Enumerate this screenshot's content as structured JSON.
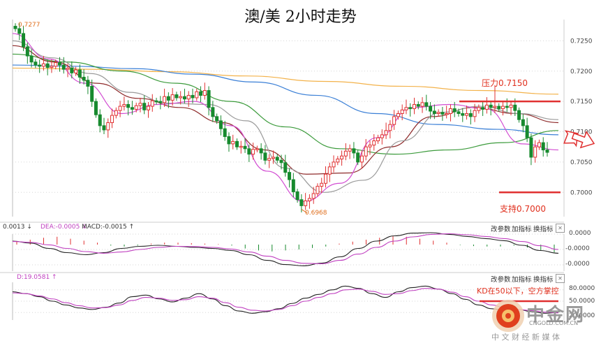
{
  "title": "澳/美 2小时走势",
  "colors": {
    "up": "#e03030",
    "down": "#178a2e",
    "resistance": "#e03030",
    "support": "#e03030",
    "ma_orange": "#f3b24a",
    "ma_blue": "#3a7fd6",
    "ma_green": "#3c9b3c",
    "ma_darkred": "#8e2a2a",
    "ma_magenta": "#d24dd2",
    "ma_black": "#222222",
    "ma_gray": "#9a9a9a",
    "grid": "#d6d6d6",
    "axis_text": "#444444",
    "annotation_red": "#e0301e",
    "annotation_orange": "#e07020"
  },
  "annotations": {
    "resistance": "压力0.7150",
    "support": "支持0.7000",
    "high_label": "0.7277",
    "low_label": "0.6968",
    "kd_note": "KD在50以下，空方掌控"
  },
  "macd_panel": {
    "label_dif": "0.0013 ↓",
    "label_dea": "DEA:-0.0005 ↓",
    "label_macd": "MACD:-0.0015 ↑",
    "buttons": [
      "改参数",
      "加指标",
      "换指标"
    ],
    "close_icon": "✕",
    "ticks": [
      "0.0000",
      "-0.0000",
      "-0.0000"
    ]
  },
  "kd_panel": {
    "label_d": "D:19.0581 ↑",
    "buttons": [
      "改参数",
      "加指标",
      "换指标"
    ],
    "close_icon": "✕",
    "ticks": [
      "80.0000",
      "50.0000",
      "20.0000"
    ]
  },
  "logo": {
    "name": "中金网",
    "domain": "CNGOLD.COM.CN",
    "slogan": "中 文 财 经 新 媒 体"
  },
  "chart_data": [
    {
      "type": "candlestick",
      "title": "澳/美 2小时走势",
      "y_ticks": [
        "0.7250",
        "0.7200",
        "0.7150",
        "0.7100",
        "0.7050",
        "0.7000"
      ],
      "ylim": [
        0.696,
        0.7285
      ],
      "grid": true,
      "resistance": 0.715,
      "support": 0.7,
      "high": 0.7277,
      "low": 0.6968,
      "close_path": [
        0.727,
        0.7262,
        0.724,
        0.7225,
        0.7215,
        0.721,
        0.7208,
        0.7212,
        0.7206,
        0.7208,
        0.7214,
        0.721,
        0.7203,
        0.7205,
        0.7197,
        0.7202,
        0.719,
        0.7185,
        0.7175,
        0.715,
        0.7128,
        0.711,
        0.7103,
        0.7115,
        0.7127,
        0.7135,
        0.7142,
        0.7145,
        0.714,
        0.7137,
        0.7143,
        0.7147,
        0.7136,
        0.7142,
        0.7151,
        0.715,
        0.7148,
        0.7158,
        0.7152,
        0.7161,
        0.7156,
        0.7158,
        0.7154,
        0.716,
        0.7156,
        0.7166,
        0.716,
        0.7168,
        0.714,
        0.7125,
        0.7118,
        0.7105,
        0.7092,
        0.708,
        0.7084,
        0.7075,
        0.7076,
        0.7072,
        0.7063,
        0.7071,
        0.7072,
        0.7065,
        0.7053,
        0.7056,
        0.7058,
        0.7053,
        0.7049,
        0.7033,
        0.7021,
        0.7001,
        0.6988,
        0.6978,
        0.6986,
        0.699,
        0.6998,
        0.701,
        0.7015,
        0.703,
        0.7042,
        0.705,
        0.7055,
        0.706,
        0.7068,
        0.7072,
        0.7065,
        0.705,
        0.706,
        0.7075,
        0.7078,
        0.7085,
        0.709,
        0.7095,
        0.7102,
        0.7112,
        0.7125,
        0.713,
        0.7136,
        0.714,
        0.7138,
        0.7145,
        0.7142,
        0.7148,
        0.7142,
        0.7134,
        0.713,
        0.7132,
        0.7129,
        0.713,
        0.7138,
        0.7133,
        0.713,
        0.7127,
        0.713,
        0.7125,
        0.7135,
        0.714,
        0.7137,
        0.7144,
        0.714,
        0.7142,
        0.7138,
        0.7142,
        0.714,
        0.7144,
        0.7135,
        0.712,
        0.711,
        0.709,
        0.7058,
        0.7075,
        0.7082,
        0.707,
        0.7066
      ],
      "moving_averages": [
        {
          "color": "#f3b24a",
          "y": [
            0.7205,
            0.7203,
            0.7199,
            0.7192,
            0.7183,
            0.7175,
            0.7168,
            0.7162
          ]
        },
        {
          "color": "#3a7fd6",
          "y": [
            0.721,
            0.7208,
            0.7204,
            0.7195,
            0.7182,
            0.716,
            0.713,
            0.7112,
            0.7104,
            0.7095
          ]
        },
        {
          "color": "#3c9b3c",
          "y": [
            0.7228,
            0.7215,
            0.72,
            0.718,
            0.715,
            0.7108,
            0.7072,
            0.7063,
            0.707,
            0.7082,
            0.7102
          ]
        },
        {
          "color": "#8e2a2a",
          "y": [
            0.7242,
            0.7215,
            0.718,
            0.7155,
            0.714,
            0.7115,
            0.707,
            0.703,
            0.7032,
            0.7075,
            0.7125,
            0.714,
            0.713,
            0.7115
          ]
        },
        {
          "color": "#9a9a9a",
          "y": [
            0.725,
            0.7222,
            0.7196,
            0.7165,
            0.7147,
            0.7145,
            0.7118,
            0.704,
            0.7,
            0.702,
            0.7085,
            0.7132,
            0.7142,
            0.713,
            0.712
          ]
        },
        {
          "color": "#d24dd2",
          "y": [
            0.7262,
            0.722,
            0.718,
            0.713,
            0.7145,
            0.715,
            0.711,
            0.7035,
            0.6985,
            0.7015,
            0.709,
            0.714,
            0.7145,
            0.7138,
            0.708,
            0.707
          ]
        }
      ]
    },
    {
      "type": "bar+line",
      "name": "MACD",
      "y_ticks": [
        "0.0000",
        "-0.0000",
        "-0.0000"
      ],
      "macd_bars": [
        0.3,
        0.5,
        0.7,
        0.8,
        0.6,
        0.4,
        0.2,
        -0.1,
        -0.2,
        -0.1,
        0.1,
        0.2,
        0.2,
        0.15,
        0.1,
        0.05,
        -0.1,
        -0.4,
        -0.6,
        -0.7,
        -0.6,
        -0.5,
        -0.35,
        -0.2,
        0.1,
        0.3,
        0.5,
        0.7,
        0.85,
        0.8,
        0.6,
        0.4,
        0.2,
        -0.05,
        -0.15,
        -0.2,
        -0.2,
        -0.1,
        -0.3,
        -0.6,
        -0.8
      ],
      "dif": [
        0.3,
        0.2,
        -0.05,
        -0.25,
        -0.35,
        -0.25,
        -0.05,
        0.05,
        0.1,
        0.05,
        0.0,
        -0.05,
        -0.15,
        -0.35,
        -0.62,
        -0.82,
        -0.88,
        -0.75,
        -0.45,
        -0.05,
        0.3,
        0.55,
        0.68,
        0.7,
        0.62,
        0.52,
        0.42,
        0.32,
        0.1,
        -0.15,
        -0.28
      ],
      "dea": [
        0.28,
        0.24,
        0.12,
        -0.05,
        -0.2,
        -0.28,
        -0.22,
        -0.1,
        0.0,
        0.05,
        0.04,
        0.0,
        -0.08,
        -0.22,
        -0.42,
        -0.62,
        -0.76,
        -0.78,
        -0.62,
        -0.32,
        0.0,
        0.3,
        0.5,
        0.62,
        0.65,
        0.6,
        0.52,
        0.42,
        0.28,
        0.08,
        -0.1
      ]
    },
    {
      "type": "line",
      "name": "KD",
      "y_ticks": [
        "80.0000",
        "50.0000",
        "20.0000"
      ],
      "ylim": [
        0,
        100
      ],
      "k": [
        75,
        70,
        62,
        50,
        40,
        32,
        28,
        34,
        45,
        62,
        66,
        56,
        48,
        58,
        70,
        56,
        38,
        24,
        18,
        22,
        30,
        44,
        58,
        68,
        80,
        90,
        84,
        70,
        60,
        75,
        86,
        90,
        82,
        70,
        55,
        40,
        30,
        25,
        28,
        22,
        18,
        20
      ],
      "d": [
        72,
        70,
        64,
        56,
        46,
        38,
        32,
        33,
        40,
        52,
        60,
        58,
        52,
        54,
        62,
        58,
        46,
        34,
        26,
        24,
        28,
        38,
        50,
        60,
        70,
        80,
        82,
        76,
        68,
        70,
        78,
        84,
        82,
        74,
        62,
        50,
        40,
        32,
        28,
        25,
        21,
        19
      ]
    }
  ]
}
